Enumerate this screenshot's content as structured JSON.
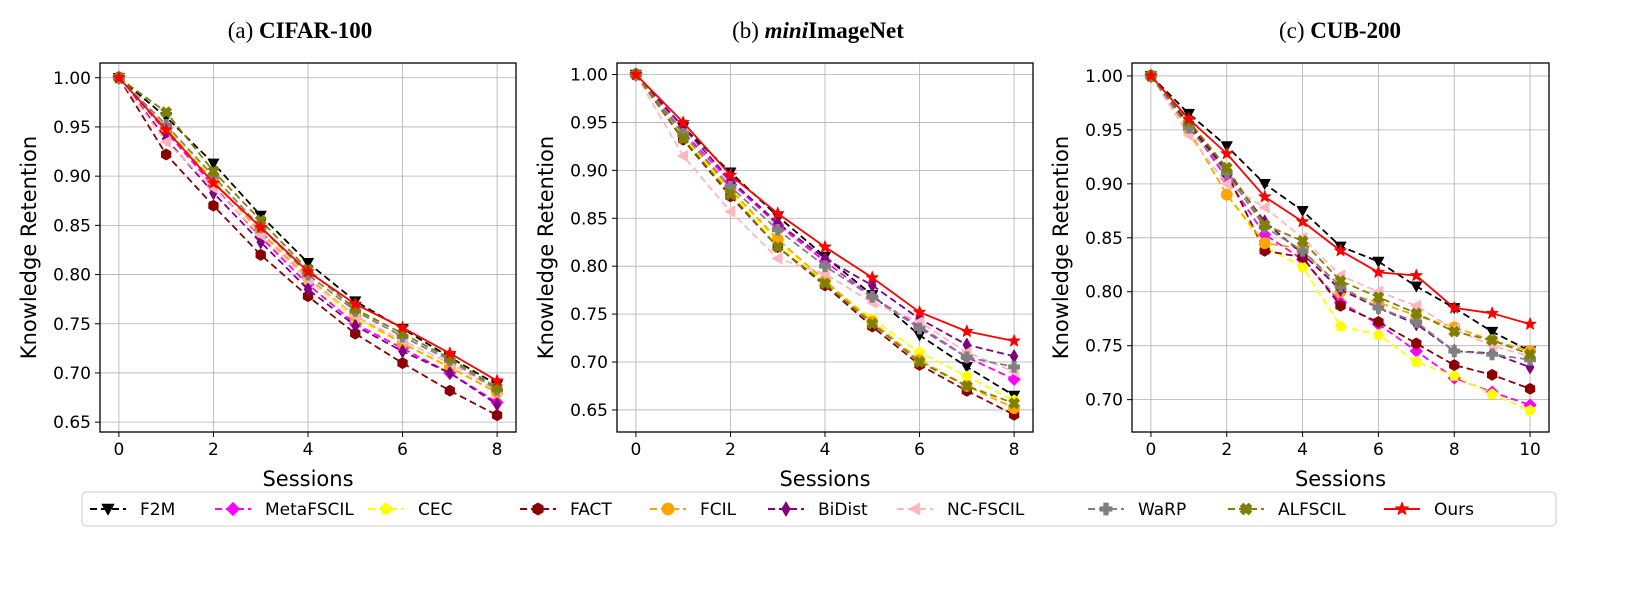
{
  "legend": {
    "entries": [
      "F2M",
      "MetaFSCIL",
      "CEC",
      "FACT",
      "FCIL",
      "BiDist",
      "NC-FSCIL",
      "WaRP",
      "ALFSCIL",
      "Ours"
    ],
    "placement": "bottom-center"
  },
  "methods": [
    {
      "name": "F2M",
      "color": "#000000",
      "marker": "triangle-down",
      "dashed": true
    },
    {
      "name": "MetaFSCIL",
      "color": "#ff00ff",
      "marker": "diamond",
      "dashed": true
    },
    {
      "name": "CEC",
      "color": "#ffff00",
      "marker": "pentagon",
      "dashed": true
    },
    {
      "name": "FACT",
      "color": "#8b0000",
      "marker": "hexagon",
      "dashed": true
    },
    {
      "name": "FCIL",
      "color": "#ffa500",
      "marker": "circle",
      "dashed": true
    },
    {
      "name": "BiDist",
      "color": "#800080",
      "marker": "thin-diamond",
      "dashed": true
    },
    {
      "name": "NC-FSCIL",
      "color": "#ffb6c1",
      "marker": "triangle-left",
      "dashed": true
    },
    {
      "name": "WaRP",
      "color": "#808080",
      "marker": "plus",
      "dashed": true
    },
    {
      "name": "ALFSCIL",
      "color": "#808000",
      "marker": "x",
      "dashed": true
    },
    {
      "name": "Ours",
      "color": "#ff0000",
      "marker": "star",
      "dashed": false
    }
  ],
  "chart_data": [
    {
      "type": "line",
      "title_prefix": "(a) ",
      "title_main": "CIFAR-100",
      "title_italic": "",
      "xlabel": "Sessions",
      "ylabel": "Knowledge Retention",
      "xlim": [
        -0.4,
        8.4
      ],
      "ylim": [
        0.64,
        1.015
      ],
      "xticks": [
        0,
        2,
        4,
        6,
        8
      ],
      "yticks": [
        "0.65",
        "0.70",
        "0.75",
        "0.80",
        "0.85",
        "0.90",
        "0.95",
        "1.00"
      ],
      "grid": true,
      "x": [
        0,
        1,
        2,
        3,
        4,
        5,
        6,
        7,
        8
      ],
      "series": [
        {
          "name": "F2M",
          "values": [
            1.0,
            0.96,
            0.913,
            0.86,
            0.812,
            0.773,
            0.745,
            0.716,
            0.688
          ]
        },
        {
          "name": "MetaFSCIL",
          "values": [
            1.0,
            0.945,
            0.89,
            0.838,
            0.79,
            0.75,
            0.725,
            0.7,
            0.67
          ]
        },
        {
          "name": "CEC",
          "values": [
            1.0,
            0.95,
            0.897,
            0.842,
            0.795,
            0.755,
            0.73,
            0.705,
            0.68
          ]
        },
        {
          "name": "FACT",
          "values": [
            1.0,
            0.922,
            0.87,
            0.82,
            0.778,
            0.74,
            0.71,
            0.682,
            0.657
          ]
        },
        {
          "name": "FCIL",
          "values": [
            1.0,
            0.948,
            0.895,
            0.843,
            0.797,
            0.758,
            0.73,
            0.706,
            0.68
          ]
        },
        {
          "name": "BiDist",
          "values": [
            1.0,
            0.938,
            0.883,
            0.833,
            0.785,
            0.748,
            0.722,
            0.7,
            0.668
          ]
        },
        {
          "name": "NC-FSCIL",
          "values": [
            1.0,
            0.935,
            0.888,
            0.84,
            0.795,
            0.758,
            0.733,
            0.71,
            0.682
          ]
        },
        {
          "name": "WaRP",
          "values": [
            1.0,
            0.952,
            0.9,
            0.848,
            0.8,
            0.763,
            0.737,
            0.713,
            0.683
          ]
        },
        {
          "name": "ALFSCIL",
          "values": [
            1.0,
            0.965,
            0.905,
            0.855,
            0.805,
            0.765,
            0.74,
            0.715,
            0.685
          ]
        },
        {
          "name": "Ours",
          "values": [
            1.0,
            0.947,
            0.893,
            0.848,
            0.803,
            0.77,
            0.746,
            0.72,
            0.692
          ]
        }
      ]
    },
    {
      "type": "line",
      "title_prefix": "(b) ",
      "title_main": "ImageNet",
      "title_italic": "mini",
      "xlabel": "Sessions",
      "ylabel": "Knowledge Retention",
      "xlim": [
        -0.4,
        8.4
      ],
      "ylim": [
        0.627,
        1.012
      ],
      "xticks": [
        0,
        2,
        4,
        6,
        8
      ],
      "yticks": [
        "0.65",
        "0.70",
        "0.75",
        "0.80",
        "0.85",
        "0.90",
        "0.95",
        "1.00"
      ],
      "grid": true,
      "x": [
        0,
        1,
        2,
        3,
        4,
        5,
        6,
        7,
        8
      ],
      "series": [
        {
          "name": "F2M",
          "values": [
            1.0,
            0.945,
            0.898,
            0.852,
            0.81,
            0.77,
            0.728,
            0.695,
            0.665
          ]
        },
        {
          "name": "MetaFSCIL",
          "values": [
            1.0,
            0.94,
            0.888,
            0.843,
            0.805,
            0.768,
            0.737,
            0.705,
            0.682
          ]
        },
        {
          "name": "CEC",
          "values": [
            1.0,
            0.935,
            0.878,
            0.825,
            0.783,
            0.745,
            0.71,
            0.685,
            0.66
          ]
        },
        {
          "name": "FACT",
          "values": [
            1.0,
            0.932,
            0.873,
            0.82,
            0.78,
            0.737,
            0.697,
            0.67,
            0.645
          ]
        },
        {
          "name": "FCIL",
          "values": [
            1.0,
            0.938,
            0.88,
            0.828,
            0.785,
            0.742,
            0.702,
            0.675,
            0.652
          ]
        },
        {
          "name": "BiDist",
          "values": [
            1.0,
            0.945,
            0.89,
            0.845,
            0.808,
            0.78,
            0.745,
            0.718,
            0.706
          ]
        },
        {
          "name": "NC-FSCIL",
          "values": [
            1.0,
            0.915,
            0.857,
            0.808,
            0.792,
            0.762,
            0.742,
            0.71,
            0.69
          ]
        },
        {
          "name": "WaRP",
          "values": [
            1.0,
            0.938,
            0.883,
            0.838,
            0.8,
            0.768,
            0.735,
            0.705,
            0.695
          ]
        },
        {
          "name": "ALFSCIL",
          "values": [
            1.0,
            0.933,
            0.875,
            0.82,
            0.782,
            0.74,
            0.7,
            0.675,
            0.657
          ]
        },
        {
          "name": "Ours",
          "values": [
            1.0,
            0.95,
            0.895,
            0.855,
            0.82,
            0.788,
            0.752,
            0.732,
            0.722
          ]
        }
      ]
    },
    {
      "type": "line",
      "title_prefix": "(c) ",
      "title_main": "CUB-200",
      "title_italic": "",
      "xlabel": "Sessions",
      "ylabel": "Knowledge Retention",
      "xlim": [
        -0.5,
        10.5
      ],
      "ylim": [
        0.67,
        1.012
      ],
      "xticks": [
        0,
        2,
        4,
        6,
        8,
        10
      ],
      "yticks": [
        "0.70",
        "0.75",
        "0.80",
        "0.85",
        "0.90",
        "0.95",
        "1.00"
      ],
      "grid": true,
      "x": [
        0,
        1,
        2,
        3,
        4,
        5,
        6,
        7,
        8,
        9,
        10
      ],
      "series": [
        {
          "name": "F2M",
          "values": [
            1.0,
            0.965,
            0.935,
            0.9,
            0.875,
            0.842,
            0.828,
            0.805,
            0.785,
            0.763,
            0.745
          ]
        },
        {
          "name": "MetaFSCIL",
          "values": [
            1.0,
            0.955,
            0.905,
            0.853,
            0.83,
            0.79,
            0.77,
            0.745,
            0.72,
            0.707,
            0.695
          ]
        },
        {
          "name": "CEC",
          "values": [
            1.0,
            0.95,
            0.89,
            0.842,
            0.823,
            0.768,
            0.76,
            0.735,
            0.722,
            0.705,
            0.69
          ]
        },
        {
          "name": "FACT",
          "values": [
            1.0,
            0.955,
            0.91,
            0.838,
            0.832,
            0.787,
            0.772,
            0.752,
            0.732,
            0.723,
            0.71
          ]
        },
        {
          "name": "FCIL",
          "values": [
            1.0,
            0.95,
            0.89,
            0.845,
            0.84,
            0.8,
            0.79,
            0.778,
            0.767,
            0.755,
            0.745
          ]
        },
        {
          "name": "BiDist",
          "values": [
            1.0,
            0.957,
            0.912,
            0.865,
            0.835,
            0.802,
            0.785,
            0.77,
            0.745,
            0.743,
            0.73
          ]
        },
        {
          "name": "NC-FSCIL",
          "values": [
            1.0,
            0.945,
            0.9,
            0.878,
            0.85,
            0.815,
            0.8,
            0.787,
            0.765,
            0.75,
            0.74
          ]
        },
        {
          "name": "WaRP",
          "values": [
            1.0,
            0.952,
            0.91,
            0.86,
            0.838,
            0.805,
            0.785,
            0.772,
            0.745,
            0.742,
            0.737
          ]
        },
        {
          "name": "ALFSCIL",
          "values": [
            1.0,
            0.958,
            0.915,
            0.862,
            0.847,
            0.81,
            0.795,
            0.78,
            0.763,
            0.755,
            0.742
          ]
        },
        {
          "name": "Ours",
          "values": [
            1.0,
            0.96,
            0.928,
            0.888,
            0.865,
            0.838,
            0.818,
            0.815,
            0.785,
            0.78,
            0.77
          ]
        }
      ]
    }
  ]
}
